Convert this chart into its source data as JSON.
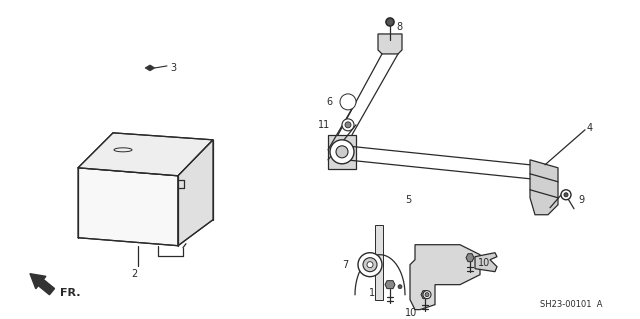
{
  "bg_color": "#ffffff",
  "fig_width": 6.4,
  "fig_height": 3.19,
  "dpi": 100,
  "diagram_code": "SH23-00101  A",
  "line_color": "#2a2a2a",
  "text_color": "#2a2a2a"
}
